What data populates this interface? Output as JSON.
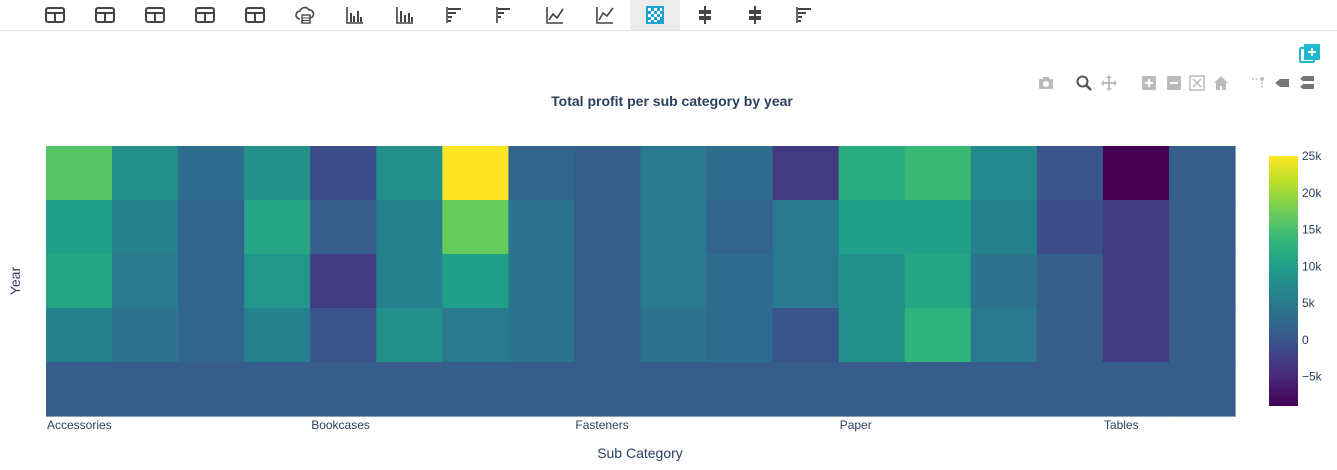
{
  "toolbar": {
    "buttons": [
      {
        "icon": "table-icon"
      },
      {
        "icon": "table-icon"
      },
      {
        "icon": "table-icon"
      },
      {
        "icon": "table-icon"
      },
      {
        "icon": "table-icon"
      },
      {
        "icon": "cloud-table-icon"
      },
      {
        "icon": "grouped-bar-chart-icon"
      },
      {
        "icon": "stacked-bar-chart-icon"
      },
      {
        "icon": "horizontal-bar-chart-icon"
      },
      {
        "icon": "horizontal-stacked-bar-icon"
      },
      {
        "icon": "line-chart-icon"
      },
      {
        "icon": "area-line-chart-icon"
      },
      {
        "icon": "heatmap-icon",
        "active": true
      },
      {
        "icon": "box-plot-icon"
      },
      {
        "icon": "box-plot-icon"
      },
      {
        "icon": "horizontal-bar-chart-icon"
      }
    ]
  },
  "modebar": {
    "buttons": [
      "camera-icon",
      "zoom-icon",
      "pan-icon",
      "zoom-in-icon",
      "zoom-out-icon",
      "autoscale-icon",
      "home-icon",
      "spike-lines-icon",
      "hover-closest-icon",
      "hover-compare-icon"
    ],
    "active": "zoom-icon"
  },
  "chart_data": {
    "type": "heatmap",
    "title": "Total profit per sub category by year",
    "xlabel": "Sub Category",
    "ylabel": "Year",
    "x_tick_labels": [
      "Accessories",
      "Bookcases",
      "Fasteners",
      "Paper",
      "Tables"
    ],
    "x_tick_columns": [
      0,
      4,
      8,
      12,
      16
    ],
    "y_tick_labels": [],
    "columns": 18,
    "rows": 5,
    "values": [
      [
        16000,
        8000,
        3000,
        8000,
        -1000,
        8000,
        25000,
        2000,
        1000,
        5000,
        3000,
        -3000,
        12000,
        14000,
        7000,
        0,
        -9000,
        1000
      ],
      [
        10000,
        6000,
        2000,
        11000,
        1000,
        6000,
        17000,
        4000,
        1000,
        5000,
        2000,
        5000,
        10000,
        10000,
        6000,
        -1000,
        -3000,
        1000
      ],
      [
        11000,
        5000,
        2000,
        9000,
        -3000,
        6000,
        10000,
        4000,
        1000,
        5000,
        3000,
        5000,
        8000,
        11000,
        4000,
        1000,
        -3000,
        1000
      ],
      [
        6000,
        4000,
        2000,
        6000,
        0,
        8000,
        5000,
        4000,
        1000,
        4000,
        3000,
        0,
        8000,
        13000,
        5000,
        1000,
        -3000,
        1000
      ],
      [
        1000,
        1000,
        1000,
        1000,
        1000,
        1000,
        1000,
        1000,
        1000,
        1000,
        1000,
        1000,
        1000,
        1000,
        1000,
        1000,
        1000,
        1000
      ]
    ],
    "zmin": -9000,
    "zmax": 25000,
    "colorscale": "Viridis",
    "colorbar": {
      "ticks": [
        25000,
        20000,
        15000,
        10000,
        5000,
        0,
        -5000
      ],
      "labels": [
        "25k",
        "20k",
        "15k",
        "10k",
        "5k",
        "0",
        "−5k"
      ]
    }
  },
  "add_button": {
    "icon": "add-chart-icon",
    "color": "#1fb8d1"
  }
}
